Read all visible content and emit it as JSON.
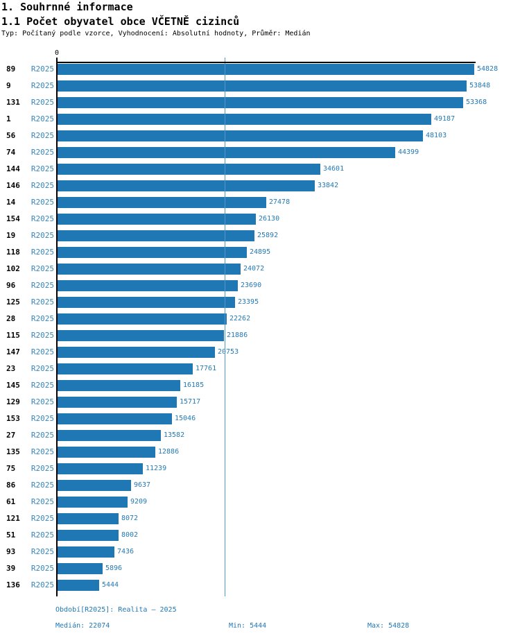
{
  "header": {
    "section_title": "1. Souhrnné informace",
    "chart_title": "1.1 Počet obyvatel obce VČETNĚ cizinců",
    "subtitle": "Typ: Počítaný podle vzorce, Vyhodnocení: Absolutní hodnoty, Průměr: Medián"
  },
  "chart_data": {
    "type": "bar",
    "orientation": "horizontal",
    "title": "1.1 Počet obyvatel obce VČETNĚ cizinců",
    "axis_zero_label": "0",
    "categories": [
      "89",
      "9",
      "131",
      "1",
      "56",
      "74",
      "144",
      "146",
      "14",
      "154",
      "19",
      "118",
      "102",
      "96",
      "125",
      "28",
      "115",
      "147",
      "23",
      "145",
      "129",
      "153",
      "27",
      "135",
      "75",
      "86",
      "61",
      "121",
      "51",
      "93",
      "39",
      "136"
    ],
    "series": [
      {
        "name": "R2025",
        "values": [
          54828,
          53848,
          53368,
          49187,
          48103,
          44399,
          34601,
          33842,
          27478,
          26130,
          25892,
          24895,
          24072,
          23690,
          23395,
          22262,
          21886,
          20753,
          17761,
          16185,
          15717,
          15046,
          13582,
          12886,
          11239,
          9637,
          9209,
          8072,
          8002,
          7436,
          5896,
          5444
        ]
      }
    ],
    "xlim": [
      0,
      54828
    ],
    "median": 22074,
    "min": 5444,
    "max": 54828,
    "grid": false,
    "legend_position": "none",
    "colors": {
      "bar": "#1f77b4",
      "median_line": "#4f9ac6",
      "value_label": "#2379b5",
      "series_label": "#3487bd",
      "footer_text": "#1f77b4"
    }
  },
  "footer": {
    "period": "Období[R2025]: Realita – 2025",
    "median": "Medián: 22074",
    "min": "Min: 5444",
    "max": "Max: 54828"
  }
}
